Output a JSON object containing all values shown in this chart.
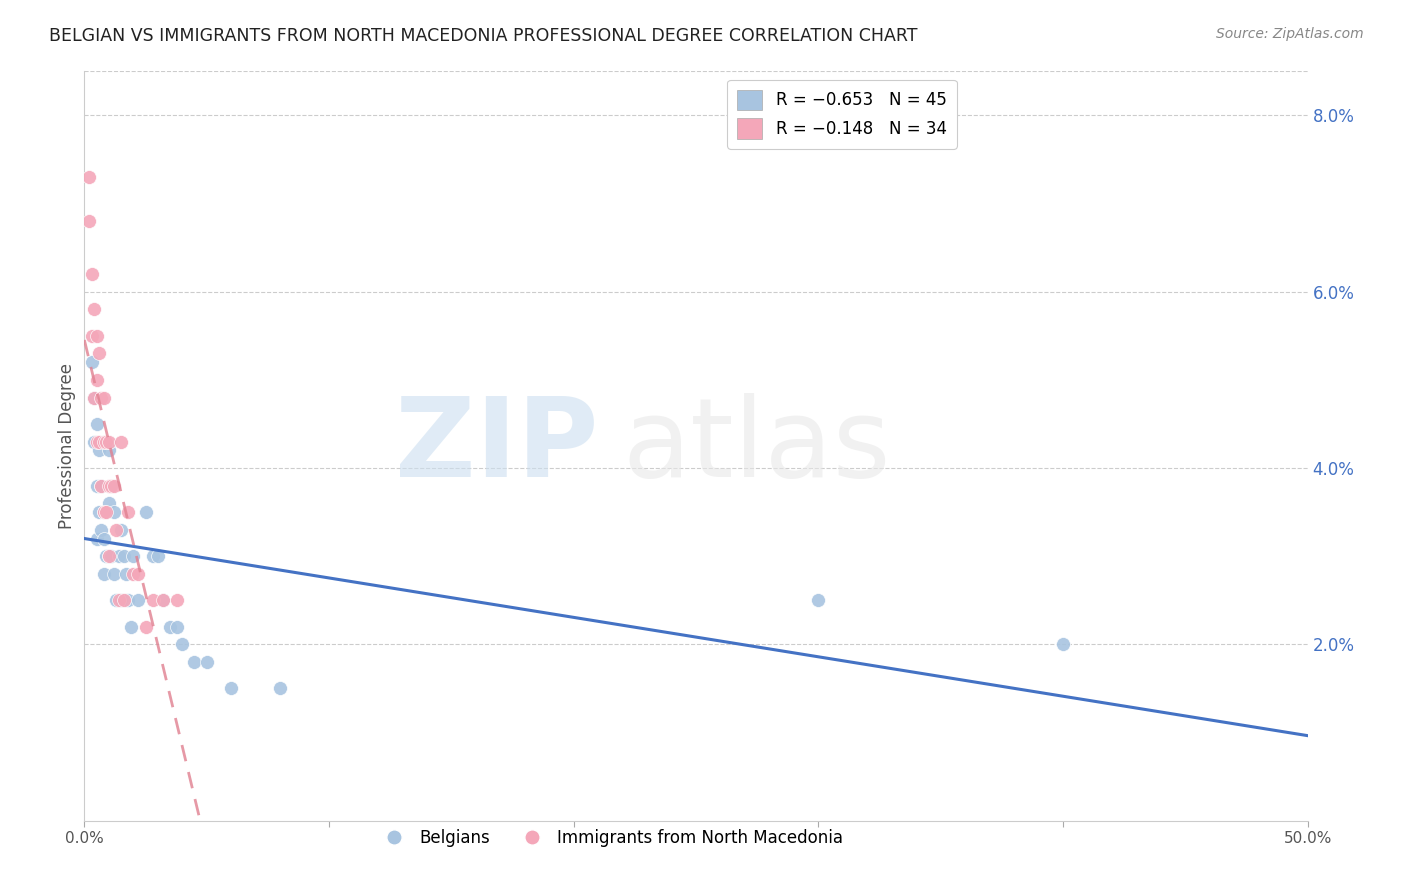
{
  "title": "BELGIAN VS IMMIGRANTS FROM NORTH MACEDONIA PROFESSIONAL DEGREE CORRELATION CHART",
  "source": "Source: ZipAtlas.com",
  "ylabel": "Professional Degree",
  "right_yticks": [
    0.0,
    0.02,
    0.04,
    0.06,
    0.08
  ],
  "right_yticklabels": [
    "",
    "2.0%",
    "4.0%",
    "6.0%",
    "8.0%"
  ],
  "xlim": [
    0.0,
    0.5
  ],
  "ylim": [
    0.0,
    0.085
  ],
  "legend_belgian": "R = −0.653   N = 45",
  "legend_macedonia": "R = −0.148   N = 34",
  "belgian_color": "#a8c4e0",
  "macedonian_color": "#f4a7b9",
  "belgian_line_color": "#4472c4",
  "macedonian_line_color": "#e08090",
  "belgian_scatter_x": [
    0.003,
    0.004,
    0.004,
    0.005,
    0.005,
    0.005,
    0.006,
    0.006,
    0.007,
    0.007,
    0.008,
    0.008,
    0.008,
    0.009,
    0.009,
    0.01,
    0.01,
    0.01,
    0.011,
    0.011,
    0.012,
    0.012,
    0.013,
    0.014,
    0.015,
    0.015,
    0.016,
    0.017,
    0.018,
    0.019,
    0.02,
    0.022,
    0.025,
    0.028,
    0.03,
    0.032,
    0.035,
    0.038,
    0.04,
    0.045,
    0.05,
    0.06,
    0.08,
    0.3,
    0.4
  ],
  "belgian_scatter_y": [
    0.052,
    0.048,
    0.043,
    0.045,
    0.038,
    0.032,
    0.042,
    0.035,
    0.038,
    0.033,
    0.035,
    0.032,
    0.028,
    0.035,
    0.03,
    0.042,
    0.036,
    0.03,
    0.038,
    0.03,
    0.035,
    0.028,
    0.025,
    0.03,
    0.033,
    0.025,
    0.03,
    0.028,
    0.025,
    0.022,
    0.03,
    0.025,
    0.035,
    0.03,
    0.03,
    0.025,
    0.022,
    0.022,
    0.02,
    0.018,
    0.018,
    0.015,
    0.015,
    0.025,
    0.02
  ],
  "macedonian_scatter_x": [
    0.002,
    0.002,
    0.003,
    0.003,
    0.004,
    0.004,
    0.005,
    0.005,
    0.005,
    0.006,
    0.006,
    0.007,
    0.007,
    0.008,
    0.008,
    0.008,
    0.009,
    0.009,
    0.01,
    0.01,
    0.01,
    0.011,
    0.012,
    0.013,
    0.014,
    0.015,
    0.016,
    0.018,
    0.02,
    0.022,
    0.025,
    0.028,
    0.032,
    0.038
  ],
  "macedonian_scatter_y": [
    0.073,
    0.068,
    0.062,
    0.055,
    0.058,
    0.048,
    0.055,
    0.05,
    0.043,
    0.053,
    0.043,
    0.048,
    0.038,
    0.048,
    0.043,
    0.035,
    0.043,
    0.035,
    0.043,
    0.038,
    0.03,
    0.038,
    0.038,
    0.033,
    0.025,
    0.043,
    0.025,
    0.035,
    0.028,
    0.028,
    0.022,
    0.025,
    0.025,
    0.025
  ]
}
